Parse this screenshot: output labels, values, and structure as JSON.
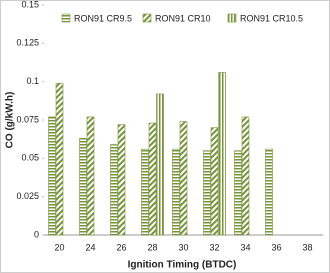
{
  "chart_data": {
    "type": "bar",
    "xlabel": "Ignition Timing (BTDC)",
    "ylabel": "CO (g/kW.h)",
    "categories": [
      "20",
      "24",
      "26",
      "28",
      "30",
      "32",
      "34",
      "36",
      "38"
    ],
    "series": [
      {
        "name": "RON91 CR9.5",
        "color": "#77933c",
        "pattern": "horizontal",
        "values": [
          0.077,
          0.063,
          0.059,
          0.056,
          0.056,
          0.055,
          0.055,
          0.056,
          null
        ]
      },
      {
        "name": "RON91 CR10",
        "color": "#77933c",
        "pattern": "diagonal",
        "values": [
          0.099,
          0.077,
          0.072,
          0.073,
          0.074,
          0.07,
          0.077,
          null,
          null
        ]
      },
      {
        "name": "RON91 CR10.5",
        "color": "#77933c",
        "pattern": "vertical",
        "values": [
          null,
          null,
          null,
          0.092,
          null,
          0.106,
          null,
          null,
          null
        ]
      }
    ],
    "ylim": [
      0,
      0.15
    ],
    "yticks": [
      0,
      0.025,
      0.05,
      0.075,
      0.1,
      0.125,
      0.15
    ],
    "grid": false,
    "legend": "top"
  }
}
